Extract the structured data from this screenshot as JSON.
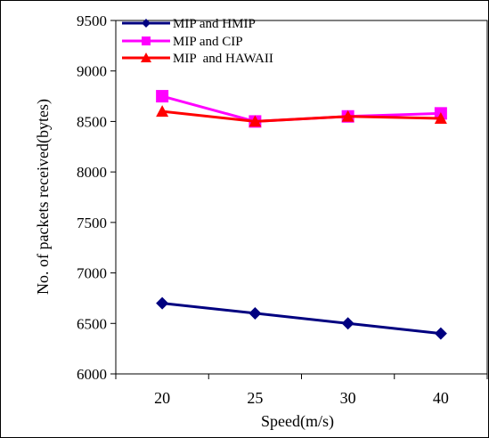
{
  "chart_data": {
    "type": "line",
    "title": "",
    "xlabel": "Speed(m/s)",
    "ylabel": "No. of packets received(bytes)",
    "categories": [
      "20",
      "25",
      "30",
      "40"
    ],
    "ylim": [
      6000,
      9500
    ],
    "yticks": [
      6000,
      6500,
      7000,
      7500,
      8000,
      8500,
      9000,
      9500
    ],
    "grid": false,
    "legend_position": "top-left",
    "series": [
      {
        "name": "MIP and HMIP",
        "values": [
          6700,
          6600,
          6500,
          6400
        ],
        "color": "#000080",
        "marker": "diamond"
      },
      {
        "name": "MIP and CIP",
        "values": [
          8750,
          8500,
          8550,
          8580
        ],
        "color": "#ff00ff",
        "marker": "square"
      },
      {
        "name": "MIP  and HAWAII",
        "values": [
          8600,
          8500,
          8550,
          8530
        ],
        "color": "#ff0000",
        "marker": "triangle"
      }
    ]
  }
}
